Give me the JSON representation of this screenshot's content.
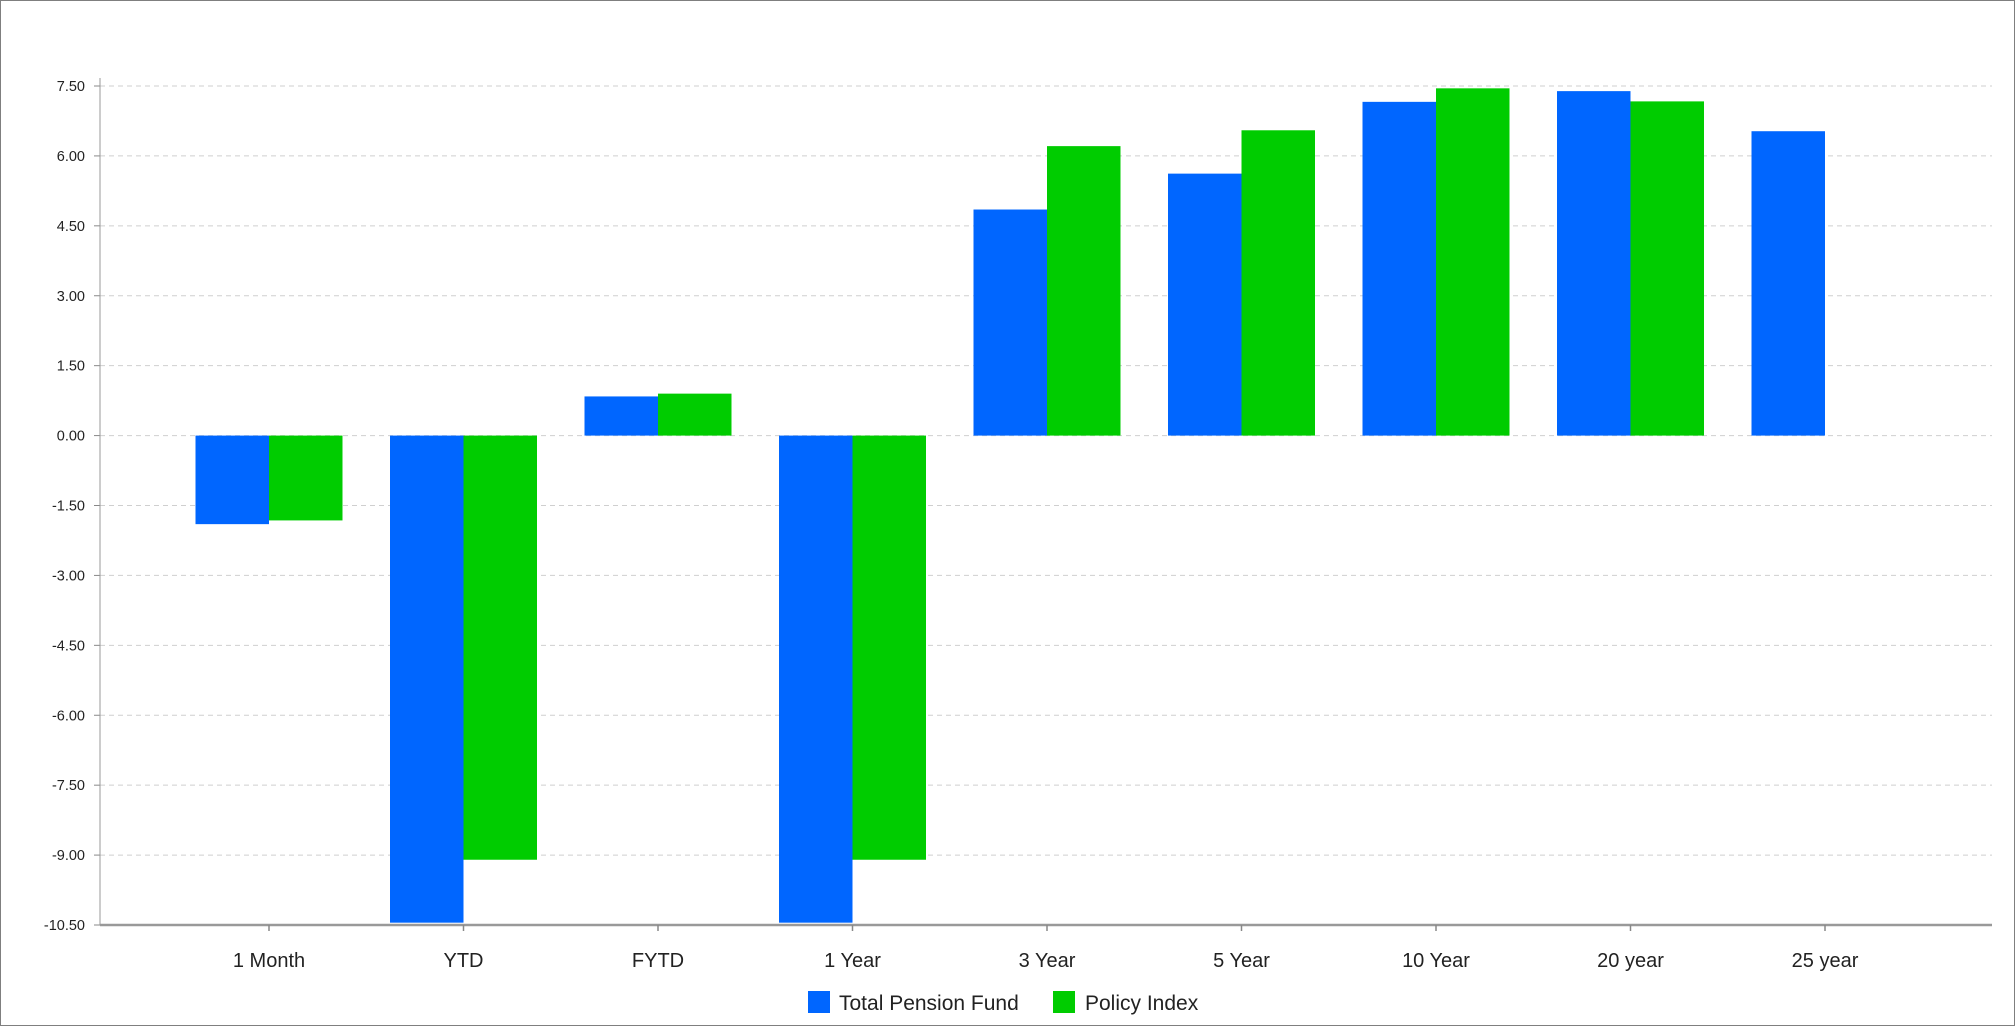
{
  "chart_data": {
    "type": "bar",
    "categories": [
      "1 Month",
      "YTD",
      "FYTD",
      "1 Year",
      "3 Year",
      "5 Year",
      "10 Year",
      "20 year",
      "25 year"
    ],
    "series": [
      {
        "name": "Total Pension Fund",
        "color": "#0066ff",
        "values": [
          -1.9,
          -10.45,
          0.84,
          -10.45,
          4.85,
          5.62,
          7.16,
          7.39,
          6.53
        ]
      },
      {
        "name": "Policy Index",
        "color": "#00cc00",
        "values": [
          -1.82,
          -9.1,
          0.9,
          -9.1,
          6.21,
          6.55,
          7.45,
          7.17,
          null
        ]
      }
    ],
    "yticks": [
      "7.50",
      "6.00",
      "4.50",
      "3.00",
      "1.50",
      "0.00",
      "-1.50",
      "-3.00",
      "-4.50",
      "-6.00",
      "-7.50",
      "-9.00",
      "-10.50"
    ],
    "ylim": [
      -10.5,
      7.5
    ],
    "grid": true,
    "legend_position": "bottom-center"
  }
}
